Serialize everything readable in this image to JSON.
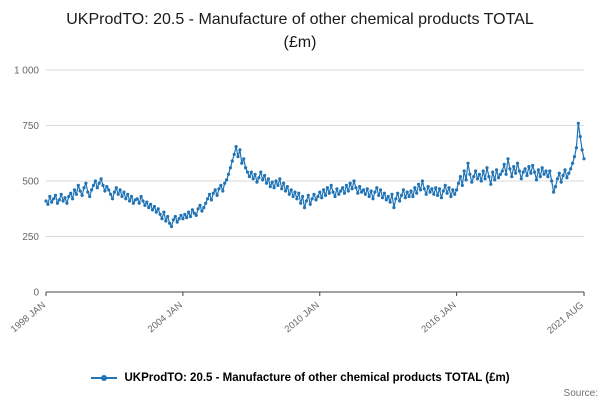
{
  "title": "UKProdTO: 20.5 - Manufacture of other chemical products TOTAL (£m)",
  "source_label": "Source:",
  "legend": {
    "label": "UKProdTO: 20.5 - Manufacture of other chemical products TOTAL (£m)"
  },
  "colors": {
    "line": "#2073b5",
    "grid": "#d9d9d9",
    "axis": "#444444",
    "tick_text": "#666666"
  },
  "chart_data": {
    "type": "line",
    "title": "UKProdTO: 20.5 - Manufacture of other chemical products TOTAL (£m)",
    "xlabel": "",
    "ylabel": "",
    "x_start": "1998 JAN",
    "x_end": "2021 AUG",
    "frequency": "monthly",
    "ylim": [
      0,
      1000
    ],
    "y_tick_values": [
      0,
      250,
      500,
      750,
      1000
    ],
    "y_tick_labels": [
      "0",
      "250",
      "500",
      "750",
      "1 000"
    ],
    "x_ticks": [
      {
        "label": "1998 JAN",
        "index": 0
      },
      {
        "label": "2004 JAN",
        "index": 72
      },
      {
        "label": "2010 JAN",
        "index": 144
      },
      {
        "label": "2016 JAN",
        "index": 216
      },
      {
        "label": "2021 AUG",
        "index": 283
      }
    ],
    "grid": true,
    "legend_position": "bottom",
    "series": [
      {
        "name": "UKProdTO: 20.5 - Manufacture of other chemical products TOTAL (£m)",
        "color": "#2073b5",
        "values": [
          410,
          395,
          430,
          405,
          420,
          435,
          400,
          415,
          440,
          410,
          425,
          400,
          430,
          445,
          420,
          460,
          440,
          480,
          455,
          435,
          470,
          490,
          450,
          430,
          460,
          480,
          500,
          470,
          490,
          510,
          480,
          455,
          475,
          460,
          440,
          420,
          450,
          470,
          440,
          460,
          430,
          450,
          420,
          440,
          410,
          430,
          400,
          415,
          420,
          400,
          430,
          410,
          390,
          405,
          380,
          395,
          370,
          385,
          360,
          375,
          350,
          330,
          360,
          320,
          340,
          310,
          295,
          325,
          340,
          315,
          330,
          345,
          330,
          350,
          335,
          360,
          340,
          370,
          355,
          345,
          375,
          390,
          365,
          380,
          400,
          420,
          440,
          415,
          445,
          460,
          435,
          465,
          480,
          455,
          490,
          505,
          530,
          560,
          590,
          620,
          655,
          610,
          640,
          580,
          600,
          560,
          540,
          520,
          540,
          510,
          530,
          495,
          515,
          540,
          505,
          525,
          490,
          510,
          475,
          495,
          470,
          500,
          480,
          510,
          465,
          490,
          455,
          475,
          440,
          460,
          430,
          450,
          420,
          445,
          400,
          430,
          380,
          410,
          435,
          395,
          420,
          440,
          415,
          430,
          450,
          425,
          460,
          435,
          470,
          445,
          480,
          450,
          430,
          465,
          440,
          455,
          470,
          445,
          480,
          455,
          490,
          465,
          500,
          470,
          445,
          475,
          450,
          460,
          440,
          465,
          430,
          455,
          420,
          450,
          470,
          435,
          460,
          425,
          445,
          415,
          430,
          405,
          440,
          380,
          420,
          445,
          410,
          435,
          460,
          425,
          450,
          430,
          455,
          430,
          470,
          445,
          485,
          460,
          500,
          465,
          440,
          475,
          450,
          465,
          440,
          470,
          435,
          465,
          425,
          455,
          480,
          445,
          470,
          430,
          460,
          440,
          460,
          490,
          520,
          480,
          545,
          505,
          580,
          530,
          495,
          520,
          545,
          510,
          530,
          500,
          545,
          510,
          560,
          520,
          485,
          540,
          505,
          550,
          515,
          530,
          545,
          575,
          530,
          600,
          555,
          520,
          565,
          535,
          580,
          545,
          510,
          540,
          555,
          525,
          565,
          535,
          570,
          540,
          505,
          550,
          520,
          560,
          530,
          545,
          520,
          545,
          500,
          450,
          475,
          510,
          535,
          495,
          525,
          550,
          515,
          535,
          555,
          580,
          610,
          650,
          760,
          700,
          640,
          600
        ]
      }
    ]
  }
}
